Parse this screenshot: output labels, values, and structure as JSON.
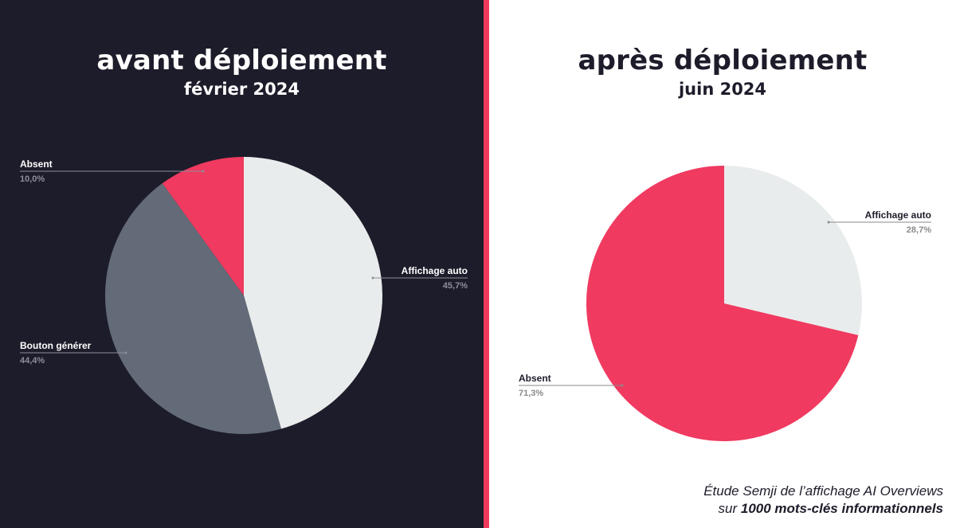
{
  "colors": {
    "dark_bg": "#1d1c2a",
    "accent": "#ef3a5d",
    "light_slice": "#e9ecec",
    "gray_slice": "#646b78",
    "pink_slice": "#f03a60"
  },
  "left": {
    "title": "avant déploiement",
    "subtitle": "février 2024"
  },
  "right": {
    "title": "après déploiement",
    "subtitle": "juin 2024"
  },
  "footer": {
    "line1": "Étude Semji de l’affichage AI Overviews",
    "line2_prefix": "sur ",
    "line2_bold": "1000 mots-clés informationnels"
  },
  "chart_data": [
    {
      "type": "pie",
      "title": "avant déploiement",
      "subtitle": "février 2024",
      "slices": [
        {
          "label": "Affichage auto",
          "value_label": "45,7%",
          "value": 45.7,
          "color": "#e9ecec"
        },
        {
          "label": "Bouton générer",
          "value_label": "44,4%",
          "value": 44.4,
          "color": "#646b78"
        },
        {
          "label": "Absent",
          "value_label": "10,0%",
          "value": 10.0,
          "color": "#f03a60"
        }
      ]
    },
    {
      "type": "pie",
      "title": "après déploiement",
      "subtitle": "juin 2024",
      "slices": [
        {
          "label": "Affichage auto",
          "value_label": "28,7%",
          "value": 28.7,
          "color": "#e9ecec"
        },
        {
          "label": "Absent",
          "value_label": "71,3%",
          "value": 71.3,
          "color": "#f03a60"
        }
      ]
    }
  ]
}
